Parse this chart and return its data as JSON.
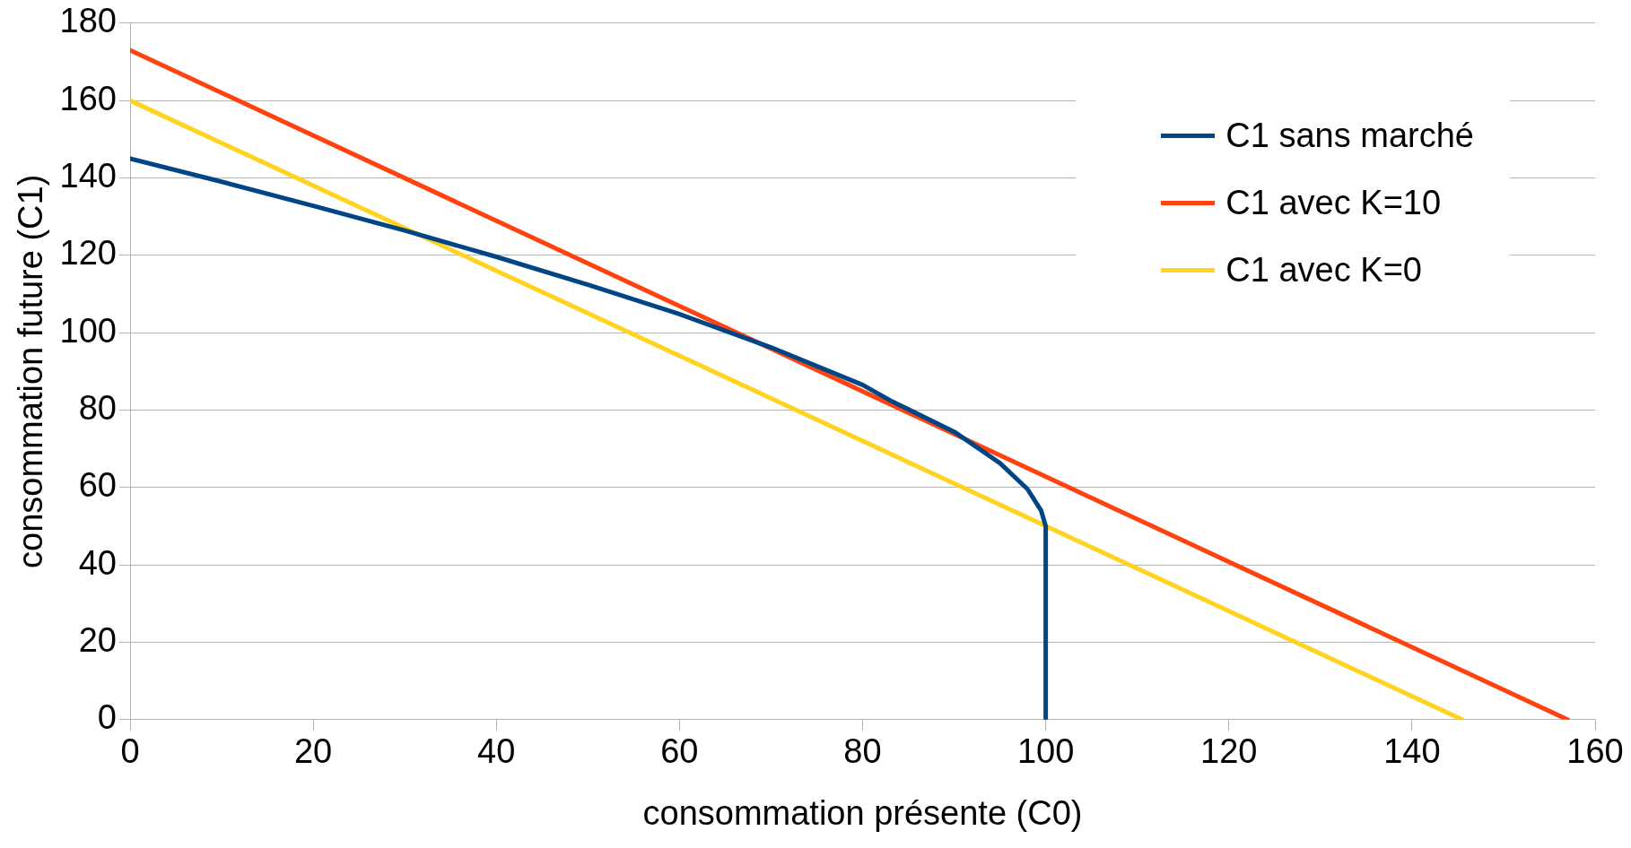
{
  "chart_data": {
    "type": "line",
    "xlabel": "consommation présente (C0)",
    "ylabel": "consommation future (C1)",
    "xlim": [
      0,
      160
    ],
    "xticks": [
      0,
      20,
      40,
      60,
      80,
      100,
      120,
      140,
      160
    ],
    "ylim": [
      0,
      180
    ],
    "yticks": [
      0,
      20,
      40,
      60,
      80,
      100,
      120,
      140,
      160,
      180
    ],
    "grid": "y",
    "legend": "top right",
    "marker": "none",
    "line_style": "solid",
    "series": [
      {
        "name": "C1 sans marché",
        "color": "#004586",
        "x": [
          0,
          10,
          20,
          30,
          40,
          50,
          60,
          70,
          80,
          83,
          90,
          95,
          98,
          99.5,
          100,
          100
        ],
        "values": [
          145,
          139,
          132.8,
          126.4,
          119.6,
          112.4,
          104.8,
          96.2,
          86.5,
          82.5,
          74.4,
          66.3,
          59.6,
          54,
          50,
          0
        ]
      },
      {
        "name": "C1 avec K=10",
        "color": "#ff420e",
        "x": [
          0,
          157
        ],
        "values": [
          173,
          0
        ]
      },
      {
        "name": "C1 avec K=0",
        "color": "#ffd320",
        "x": [
          0,
          145.5
        ],
        "values": [
          160,
          0
        ]
      }
    ]
  }
}
